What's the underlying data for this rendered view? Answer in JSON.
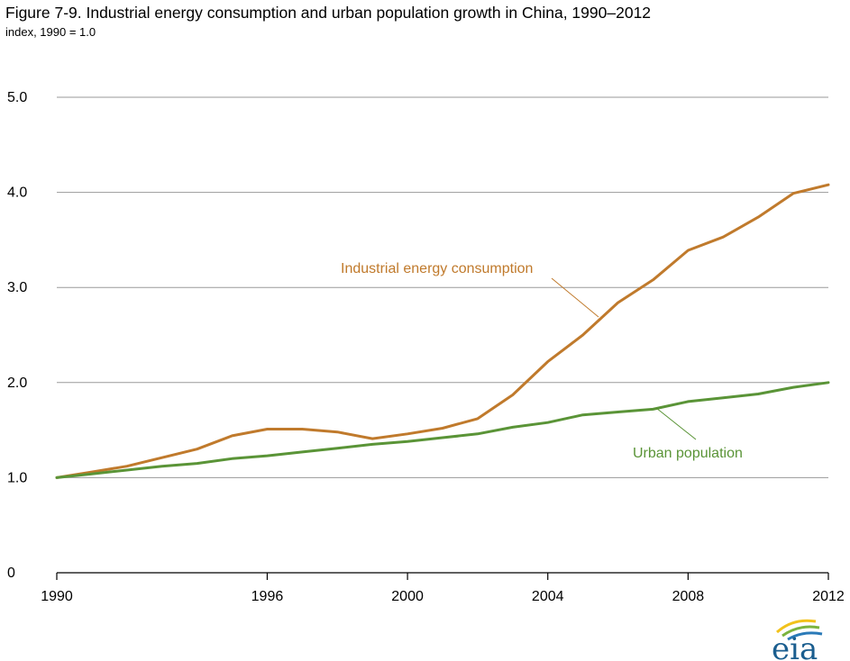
{
  "chart_data": {
    "type": "line",
    "title": "Figure 7-9. Industrial energy consumption and urban population growth in China, 1990–2012",
    "subtitle": "index, 1990 = 1.0",
    "x": [
      1990,
      1991,
      1992,
      1993,
      1994,
      1995,
      1996,
      1997,
      1998,
      1999,
      2000,
      2001,
      2002,
      2003,
      2004,
      2005,
      2006,
      2007,
      2008,
      2009,
      2010,
      2011,
      2012
    ],
    "series": [
      {
        "name": "Industrial energy consumption",
        "color": "#c07a2c",
        "values": [
          1.0,
          1.06,
          1.12,
          1.21,
          1.3,
          1.44,
          1.51,
          1.51,
          1.48,
          1.41,
          1.46,
          1.52,
          1.62,
          1.87,
          2.22,
          2.5,
          2.84,
          3.08,
          3.39,
          3.53,
          3.74,
          3.99,
          4.08
        ]
      },
      {
        "name": "Urban population",
        "color": "#5a9437",
        "values": [
          1.0,
          1.04,
          1.08,
          1.12,
          1.15,
          1.2,
          1.23,
          1.27,
          1.31,
          1.35,
          1.38,
          1.42,
          1.46,
          1.53,
          1.58,
          1.66,
          1.69,
          1.72,
          1.8,
          1.84,
          1.88,
          1.95,
          2.0
        ]
      }
    ],
    "x_ticks": [
      "1990",
      "1996",
      "2000",
      "2004",
      "2008",
      "2012"
    ],
    "y_ticks": [
      "0",
      "1.0",
      "2.0",
      "3.0",
      "4.0",
      "5.0"
    ],
    "xlim": [
      1990,
      2012
    ],
    "ylim": [
      0,
      5
    ],
    "grid": "horizontal",
    "legend": "inline annotations",
    "annotations": {
      "energy_label": "Industrial energy consumption",
      "urban_label": "Urban population"
    }
  },
  "logo": {
    "text": "eia",
    "name": "eia-logo"
  }
}
